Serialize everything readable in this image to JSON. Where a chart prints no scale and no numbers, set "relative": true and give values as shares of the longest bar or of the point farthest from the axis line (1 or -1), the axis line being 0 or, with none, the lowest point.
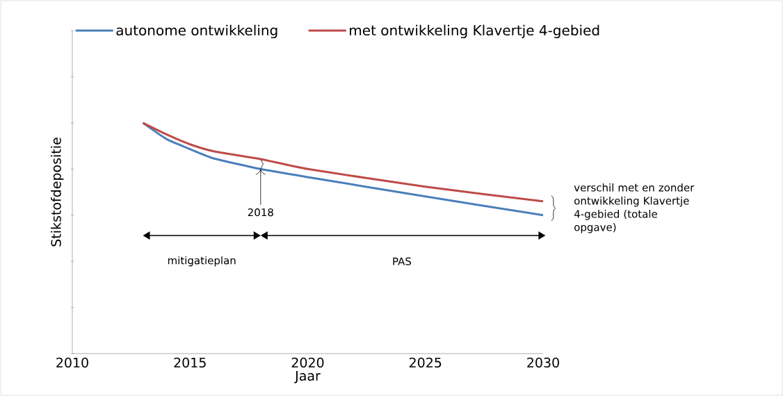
{
  "chart_data": {
    "type": "line",
    "relative": true,
    "xlabel": "Jaar",
    "ylabel": "Stikstofdepositie",
    "x": [
      2013,
      2014,
      2015,
      2016,
      2018,
      2020,
      2025,
      2030
    ],
    "xlim": [
      2010,
      2030
    ],
    "xticks": [
      2010,
      2015,
      2020,
      2025,
      2030
    ],
    "legend": "top",
    "series": [
      {
        "name": "autonome ontwikkeling",
        "color": "#4a7ebb",
        "values": [
          1.0,
          0.93,
          0.886,
          0.846,
          0.8,
          0.765,
          0.681,
          0.6
        ]
      },
      {
        "name": "met ontwikkeling Klavertje 4-gebied",
        "color": "#be4b48",
        "values": [
          1.0,
          0.95,
          0.907,
          0.877,
          0.843,
          0.8,
          0.723,
          0.66
        ]
      }
    ],
    "annotations": [
      {
        "text": "2018",
        "x": 2018,
        "y": 0.8
      },
      "mitigatieplan",
      "PAS",
      "verschil met en zonder ontwikkeling Klavertje 4-gebied (totale opgave)"
    ]
  }
}
